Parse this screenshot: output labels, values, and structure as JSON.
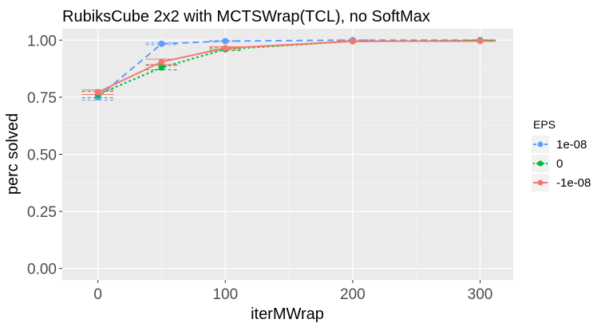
{
  "chart_data": {
    "type": "line",
    "title": "RubiksCube 2x2 with MCTSWrap(TCL), no SoftMax",
    "xlabel": "iterMWrap",
    "ylabel": "perc solved",
    "x": [
      0,
      50,
      100,
      200,
      300
    ],
    "xticks": [
      0,
      100,
      200,
      300
    ],
    "yticks": [
      0.0,
      0.25,
      0.5,
      0.75,
      1.0
    ],
    "xtick_labels": [
      "0",
      "100",
      "200",
      "300"
    ],
    "ytick_labels": [
      "0.00",
      "0.25",
      "0.50",
      "0.75",
      "1.00"
    ],
    "xlim": [
      -28,
      326
    ],
    "ylim": [
      -0.05,
      1.05
    ],
    "grid": true,
    "legend": {
      "title": "EPS",
      "position": "right"
    },
    "series": [
      {
        "name": "1e-08",
        "color": "#619CFF",
        "dash": "8,5",
        "values": [
          0.75,
          0.984,
          0.996,
          1.0,
          1.0
        ],
        "err": [
          0.012,
          0.004,
          0.002,
          0.001,
          0.001
        ]
      },
      {
        "name": "0",
        "color": "#00BA38",
        "dash": "3,3",
        "values": [
          0.762,
          0.88,
          0.96,
          0.995,
          0.998
        ],
        "err": [
          0.014,
          0.01,
          0.006,
          0.002,
          0.001
        ]
      },
      {
        "name": "-1e-08",
        "color": "#F8766D",
        "dash": "",
        "values": [
          0.772,
          0.905,
          0.965,
          0.995,
          0.996
        ],
        "err": [
          0.01,
          0.012,
          0.006,
          0.002,
          0.001
        ]
      }
    ]
  }
}
